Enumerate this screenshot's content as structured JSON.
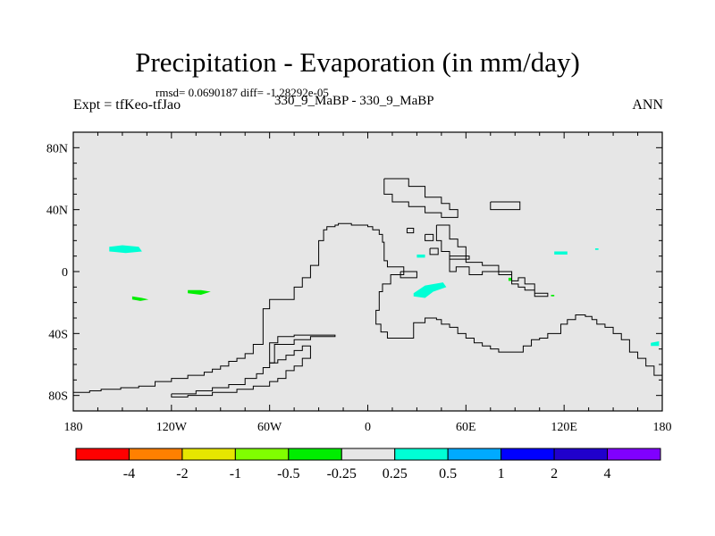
{
  "figure": {
    "title": "Precipitation - Evaporation (in mm/day)",
    "stats_line": "rmsd= 0.0690187 diff= -1.28292e-05",
    "left_label": "Expt = tfKeo-tfJao",
    "center_label": "330_9_MaBP - 330_9_MaBP",
    "right_label": "ANN"
  },
  "chart_data": {
    "type": "heatmap",
    "projection": "cylindrical-equidistant",
    "xlim": [
      -180,
      180
    ],
    "ylim": [
      -90,
      90
    ],
    "x_ticks": [
      -180,
      -120,
      -60,
      0,
      60,
      120,
      180
    ],
    "x_tick_labels": [
      "180",
      "120W",
      "60W",
      "0",
      "60E",
      "120E",
      "180"
    ],
    "y_ticks": [
      80,
      40,
      0,
      -40,
      -80
    ],
    "y_tick_labels": [
      "80N",
      "40N",
      "0",
      "40S",
      "80S"
    ],
    "colorbar": {
      "levels": [
        "-4",
        "-2",
        "-1",
        "-0.5",
        "-0.25",
        "0.25",
        "0.5",
        "1",
        "2",
        "4"
      ],
      "colors": [
        "#ff0000",
        "#ff8000",
        "#e6e600",
        "#80ff00",
        "#00ee00",
        "#e6e6e6",
        "#00ffd5",
        "#00aaff",
        "#0000ff",
        "#2000cc",
        "#8000ff"
      ]
    },
    "background_color": "#e6e6e6",
    "coastlines": [
      [
        [
          -180,
          -78
        ],
        [
          -170,
          -78
        ],
        [
          -170,
          -77
        ],
        [
          -163,
          -77
        ],
        [
          -163,
          -76
        ],
        [
          -151,
          -76
        ],
        [
          -151,
          -75
        ],
        [
          -140,
          -75
        ],
        [
          -140,
          -74
        ],
        [
          -130,
          -74
        ],
        [
          -130,
          -71
        ],
        [
          -120,
          -71
        ],
        [
          -120,
          -69
        ],
        [
          -110,
          -69
        ],
        [
          -110,
          -67
        ],
        [
          -100,
          -67
        ],
        [
          -100,
          -65
        ],
        [
          -95,
          -65
        ],
        [
          -95,
          -63
        ],
        [
          -90,
          -63
        ],
        [
          -90,
          -61
        ],
        [
          -85,
          -61
        ],
        [
          -85,
          -58
        ],
        [
          -80,
          -58
        ],
        [
          -80,
          -56
        ],
        [
          -75,
          -56
        ],
        [
          -75,
          -53
        ],
        [
          -70,
          -53
        ],
        [
          -70,
          -47
        ],
        [
          -64,
          -47
        ],
        [
          -64,
          -24
        ],
        [
          -60,
          -24
        ],
        [
          -60,
          -18
        ],
        [
          -45,
          -18
        ],
        [
          -45,
          -10
        ],
        [
          -40,
          -10
        ],
        [
          -40,
          -4
        ],
        [
          -35,
          -4
        ],
        [
          -35,
          4
        ],
        [
          -30,
          4
        ],
        [
          -30,
          20
        ],
        [
          -27,
          20
        ],
        [
          -27,
          27
        ],
        [
          -25,
          27
        ],
        [
          -25,
          29
        ],
        [
          -20,
          29
        ],
        [
          -20,
          30
        ],
        [
          -18,
          30
        ],
        [
          -18,
          31
        ],
        [
          -10,
          31
        ],
        [
          -10,
          30
        ],
        [
          0,
          30
        ],
        [
          0,
          29
        ],
        [
          3,
          29
        ],
        [
          3,
          27
        ],
        [
          7,
          27
        ],
        [
          7,
          24
        ],
        [
          9,
          24
        ],
        [
          9,
          19
        ],
        [
          10,
          19
        ],
        [
          10,
          7
        ],
        [
          12,
          7
        ],
        [
          12,
          3
        ],
        [
          22,
          3
        ],
        [
          22,
          -2
        ],
        [
          14,
          -2
        ],
        [
          14,
          -8
        ],
        [
          9,
          -8
        ],
        [
          9,
          -13
        ],
        [
          7,
          -13
        ],
        [
          7,
          -25
        ],
        [
          5,
          -25
        ],
        [
          5,
          -34
        ],
        [
          8,
          -34
        ],
        [
          8,
          -39
        ],
        [
          12,
          -39
        ],
        [
          12,
          -43
        ],
        [
          28,
          -43
        ],
        [
          28,
          -33
        ],
        [
          35,
          -33
        ],
        [
          35,
          -30
        ],
        [
          42,
          -30
        ],
        [
          42,
          -31
        ],
        [
          45,
          -31
        ],
        [
          45,
          -34
        ],
        [
          50,
          -34
        ],
        [
          50,
          -36
        ],
        [
          55,
          -36
        ],
        [
          55,
          -40
        ],
        [
          60,
          -40
        ],
        [
          60,
          -43
        ],
        [
          65,
          -43
        ],
        [
          65,
          -46
        ],
        [
          70,
          -46
        ],
        [
          70,
          -48
        ],
        [
          75,
          -48
        ],
        [
          75,
          -50
        ],
        [
          80,
          -50
        ],
        [
          80,
          -52
        ],
        [
          95,
          -52
        ],
        [
          95,
          -48
        ],
        [
          100,
          -48
        ],
        [
          100,
          -44
        ],
        [
          105,
          -44
        ],
        [
          105,
          -43
        ],
        [
          110,
          -43
        ],
        [
          110,
          -40
        ],
        [
          118,
          -40
        ],
        [
          118,
          -34
        ],
        [
          122,
          -34
        ],
        [
          122,
          -31
        ],
        [
          127,
          -31
        ],
        [
          127,
          -28
        ],
        [
          133,
          -28
        ],
        [
          133,
          -29
        ],
        [
          137,
          -29
        ],
        [
          137,
          -31
        ],
        [
          140,
          -31
        ],
        [
          140,
          -34
        ],
        [
          145,
          -34
        ],
        [
          145,
          -36
        ],
        [
          150,
          -36
        ],
        [
          150,
          -40
        ],
        [
          155,
          -40
        ],
        [
          155,
          -44
        ],
        [
          160,
          -44
        ],
        [
          160,
          -52
        ],
        [
          165,
          -52
        ],
        [
          165,
          -56
        ],
        [
          170,
          -56
        ],
        [
          170,
          -61
        ],
        [
          175,
          -61
        ],
        [
          175,
          -67
        ],
        [
          180,
          -67
        ]
      ],
      [
        [
          -120,
          -79
        ],
        [
          -105,
          -79
        ],
        [
          -105,
          -77
        ],
        [
          -95,
          -77
        ],
        [
          -95,
          -75
        ],
        [
          -85,
          -75
        ],
        [
          -85,
          -73
        ],
        [
          -75,
          -73
        ],
        [
          -75,
          -69
        ],
        [
          -68,
          -69
        ],
        [
          -68,
          -66
        ],
        [
          -64,
          -66
        ],
        [
          -64,
          -62
        ],
        [
          -60,
          -62
        ],
        [
          -60,
          -59
        ],
        [
          -55,
          -59
        ],
        [
          -55,
          -57
        ],
        [
          -50,
          -57
        ],
        [
          -50,
          -54
        ],
        [
          -45,
          -54
        ],
        [
          -45,
          -51
        ],
        [
          -40,
          -51
        ],
        [
          -40,
          -48
        ],
        [
          -35,
          -48
        ],
        [
          -35,
          -56
        ],
        [
          -40,
          -56
        ],
        [
          -40,
          -61
        ],
        [
          -45,
          -61
        ],
        [
          -45,
          -64
        ],
        [
          -50,
          -64
        ],
        [
          -50,
          -69
        ],
        [
          -55,
          -69
        ],
        [
          -55,
          -71
        ],
        [
          -60,
          -71
        ],
        [
          -60,
          -74
        ],
        [
          -70,
          -74
        ],
        [
          -70,
          -76
        ],
        [
          -80,
          -76
        ],
        [
          -80,
          -78
        ],
        [
          -95,
          -78
        ],
        [
          -95,
          -80
        ],
        [
          -110,
          -80
        ],
        [
          -110,
          -81
        ],
        [
          -120,
          -81
        ],
        [
          -120,
          -79
        ]
      ],
      [
        [
          -60,
          -59
        ],
        [
          -57,
          -59
        ],
        [
          -57,
          -47
        ],
        [
          -45,
          -47
        ],
        [
          -45,
          -44
        ],
        [
          -35,
          -44
        ],
        [
          -35,
          -42
        ],
        [
          -20,
          -42
        ],
        [
          -20,
          -41
        ],
        [
          -45,
          -41
        ],
        [
          -45,
          -42
        ],
        [
          -55,
          -42
        ],
        [
          -55,
          -46
        ],
        [
          -60,
          -46
        ],
        [
          -60,
          -59
        ]
      ],
      [
        [
          10,
          60
        ],
        [
          25,
          60
        ],
        [
          25,
          55
        ],
        [
          35,
          55
        ],
        [
          35,
          48
        ],
        [
          45,
          48
        ],
        [
          45,
          44
        ],
        [
          50,
          44
        ],
        [
          50,
          40
        ],
        [
          55,
          40
        ],
        [
          55,
          35
        ],
        [
          45,
          35
        ],
        [
          45,
          38
        ],
        [
          35,
          38
        ],
        [
          35,
          42
        ],
        [
          25,
          42
        ],
        [
          25,
          45
        ],
        [
          15,
          45
        ],
        [
          15,
          50
        ],
        [
          10,
          50
        ],
        [
          10,
          60
        ]
      ],
      [
        [
          42,
          30
        ],
        [
          50,
          30
        ],
        [
          50,
          21
        ],
        [
          55,
          21
        ],
        [
          55,
          16
        ],
        [
          60,
          16
        ],
        [
          60,
          10
        ],
        [
          62,
          10
        ],
        [
          62,
          8
        ],
        [
          50,
          8
        ],
        [
          50,
          13
        ],
        [
          45,
          13
        ],
        [
          45,
          20
        ],
        [
          42,
          20
        ],
        [
          42,
          30
        ]
      ],
      [
        [
          50,
          10
        ],
        [
          60,
          10
        ],
        [
          60,
          6
        ],
        [
          70,
          6
        ],
        [
          70,
          4
        ],
        [
          80,
          4
        ],
        [
          80,
          0
        ],
        [
          88,
          0
        ],
        [
          88,
          -6
        ],
        [
          92,
          -6
        ],
        [
          92,
          -4
        ],
        [
          96,
          -4
        ],
        [
          96,
          -8
        ],
        [
          102,
          -8
        ],
        [
          102,
          -14
        ],
        [
          110,
          -14
        ],
        [
          110,
          -16
        ],
        [
          102,
          -16
        ],
        [
          102,
          -12
        ],
        [
          96,
          -12
        ],
        [
          96,
          -10
        ],
        [
          92,
          -10
        ],
        [
          92,
          -8
        ],
        [
          88,
          -8
        ],
        [
          88,
          -2
        ],
        [
          80,
          -2
        ],
        [
          80,
          0
        ],
        [
          70,
          0
        ],
        [
          70,
          -2
        ],
        [
          62,
          -2
        ],
        [
          62,
          3
        ],
        [
          54,
          3
        ],
        [
          54,
          0
        ],
        [
          50,
          0
        ],
        [
          50,
          10
        ]
      ],
      [
        [
          75,
          45
        ],
        [
          93,
          45
        ],
        [
          93,
          40
        ],
        [
          75,
          40
        ],
        [
          75,
          45
        ]
      ],
      [
        [
          24,
          28
        ],
        [
          28,
          28
        ],
        [
          28,
          25
        ],
        [
          24,
          25
        ],
        [
          24,
          28
        ]
      ],
      [
        [
          35,
          24
        ],
        [
          40,
          24
        ],
        [
          40,
          20
        ],
        [
          35,
          20
        ],
        [
          35,
          24
        ]
      ],
      [
        [
          38,
          15
        ],
        [
          43,
          15
        ],
        [
          43,
          11
        ],
        [
          38,
          11
        ],
        [
          38,
          15
        ]
      ],
      [
        [
          20,
          0
        ],
        [
          30,
          0
        ],
        [
          30,
          -4
        ],
        [
          20,
          -4
        ],
        [
          20,
          0
        ]
      ]
    ],
    "shaded_regions": [
      {
        "level_color": "#00ffd5",
        "shape": [
          [
            -158,
            16
          ],
          [
            -150,
            17
          ],
          [
            -140,
            16
          ],
          [
            -138,
            13
          ],
          [
            -148,
            12
          ],
          [
            -158,
            13
          ]
        ]
      },
      {
        "level_color": "#00ffd5",
        "shape": [
          [
            28,
            -14
          ],
          [
            35,
            -9
          ],
          [
            46,
            -7
          ],
          [
            48,
            -10
          ],
          [
            40,
            -13
          ],
          [
            35,
            -17
          ],
          [
            28,
            -16
          ]
        ]
      },
      {
        "level_color": "#00ffd5",
        "shape": [
          [
            114,
            13
          ],
          [
            122,
            13
          ],
          [
            122,
            11
          ],
          [
            114,
            11
          ]
        ]
      },
      {
        "level_color": "#00ffd5",
        "shape": [
          [
            30,
            11
          ],
          [
            35,
            11
          ],
          [
            35,
            9
          ],
          [
            30,
            9
          ]
        ]
      },
      {
        "level_color": "#00ffd5",
        "shape": [
          [
            173,
            -46
          ],
          [
            178,
            -45
          ],
          [
            178,
            -48
          ],
          [
            173,
            -48
          ]
        ]
      },
      {
        "level_color": "#00ffd5",
        "shape": [
          [
            139,
            15
          ],
          [
            141,
            15
          ],
          [
            141,
            14
          ],
          [
            139,
            14
          ]
        ]
      },
      {
        "level_color": "#00ee00",
        "shape": [
          [
            -144,
            -16
          ],
          [
            -138,
            -17
          ],
          [
            -134,
            -18
          ],
          [
            -139,
            -19
          ],
          [
            -144,
            -18
          ]
        ]
      },
      {
        "level_color": "#00ee00",
        "shape": [
          [
            -110,
            -12
          ],
          [
            -102,
            -12
          ],
          [
            -96,
            -13
          ],
          [
            -102,
            -15
          ],
          [
            -110,
            -14
          ]
        ]
      },
      {
        "level_color": "#00ee00",
        "shape": [
          [
            86,
            -4
          ],
          [
            88,
            -4
          ],
          [
            88,
            -6
          ],
          [
            86,
            -6
          ]
        ]
      },
      {
        "level_color": "#00ee00",
        "shape": [
          [
            112,
            -15
          ],
          [
            114,
            -15
          ],
          [
            114,
            -16
          ],
          [
            112,
            -16
          ]
        ]
      }
    ]
  }
}
